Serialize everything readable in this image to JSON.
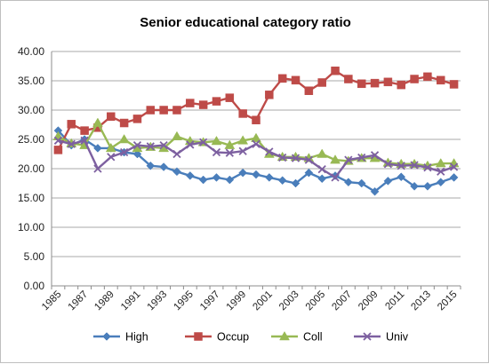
{
  "chart_data": {
    "type": "line",
    "title": "Senior educational category ratio",
    "xlabel": "",
    "ylabel": "",
    "ylim": [
      0,
      40
    ],
    "yticks": [
      "0.00",
      "5.00",
      "10.00",
      "15.00",
      "20.00",
      "25.00",
      "30.00",
      "35.00",
      "40.00"
    ],
    "x": [
      1985,
      1986,
      1987,
      1988,
      1989,
      1990,
      1991,
      1992,
      1993,
      1994,
      1995,
      1996,
      1997,
      1998,
      1999,
      2000,
      2001,
      2002,
      2003,
      2004,
      2005,
      2006,
      2007,
      2008,
      2009,
      2010,
      2011,
      2012,
      2013,
      2014,
      2015
    ],
    "xticks": [
      "1985",
      "1987",
      "1989",
      "1991",
      "1993",
      "1995",
      "1997",
      "1999",
      "2001",
      "2003",
      "2005",
      "2007",
      "2009",
      "2011",
      "2013",
      "2015"
    ],
    "grid": true,
    "legend_position": "bottom",
    "series": [
      {
        "name": "High",
        "color": "#4a7ebb",
        "marker": "diamond",
        "values": [
          26.5,
          24.0,
          25.0,
          23.5,
          23.5,
          22.8,
          22.5,
          20.5,
          20.3,
          19.5,
          18.8,
          18.1,
          18.5,
          18.1,
          19.3,
          19.0,
          18.5,
          18.0,
          17.5,
          19.3,
          18.3,
          18.8,
          17.7,
          17.5,
          16.1,
          17.9,
          18.6,
          17.0,
          17.0,
          17.7,
          18.5
        ]
      },
      {
        "name": "Occup",
        "color": "#be4b48",
        "marker": "square",
        "values": [
          23.2,
          27.6,
          26.5,
          27.0,
          28.9,
          27.8,
          28.5,
          30.0,
          30.0,
          30.0,
          31.2,
          30.9,
          31.5,
          32.1,
          29.4,
          28.3,
          32.6,
          35.4,
          35.1,
          33.3,
          34.7,
          36.7,
          35.3,
          34.5,
          34.6,
          34.8,
          34.3,
          35.3,
          35.7,
          35.1,
          34.4
        ]
      },
      {
        "name": "Coll",
        "color": "#98b954",
        "marker": "triangle",
        "values": [
          25.5,
          24.3,
          24.0,
          27.8,
          23.5,
          25.0,
          23.5,
          23.7,
          23.5,
          25.5,
          24.7,
          24.5,
          24.7,
          24.0,
          24.8,
          25.2,
          22.5,
          22.0,
          22.0,
          21.8,
          22.5,
          21.5,
          21.3,
          21.8,
          21.8,
          21.0,
          20.8,
          20.8,
          20.5,
          20.9,
          20.9
        ]
      },
      {
        "name": "Univ",
        "color": "#7d60a0",
        "marker": "x",
        "values": [
          24.8,
          24.2,
          24.8,
          20.0,
          22.0,
          22.8,
          24.0,
          23.8,
          24.0,
          22.5,
          24.1,
          24.5,
          22.8,
          22.7,
          23.0,
          24.2,
          22.9,
          21.9,
          21.8,
          21.5,
          19.9,
          18.5,
          21.5,
          21.9,
          22.3,
          20.8,
          20.5,
          20.6,
          20.2,
          19.5,
          20.3
        ]
      }
    ]
  }
}
